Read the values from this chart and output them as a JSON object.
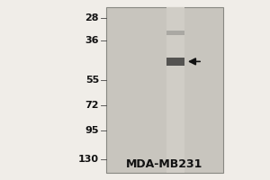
{
  "title": "MDA-MB231",
  "mw_labels": [
    "130",
    "95",
    "72",
    "55",
    "36",
    "28"
  ],
  "mw_values": [
    130,
    95,
    72,
    55,
    36,
    28
  ],
  "band_main_mw": 45,
  "band_main_intensity": 0.6,
  "band_secondary_mw": 33,
  "band_secondary_intensity": 0.2,
  "bg_color": "#c8c5be",
  "lane_bg_color": "#b8b5ae",
  "outer_bg": "#f0ede8",
  "arrow_color": "#111111",
  "band_color": "#111111",
  "label_color": "#111111",
  "title_fontsize": 9,
  "label_fontsize": 8,
  "log_min": 1.398,
  "log_max": 2.176
}
